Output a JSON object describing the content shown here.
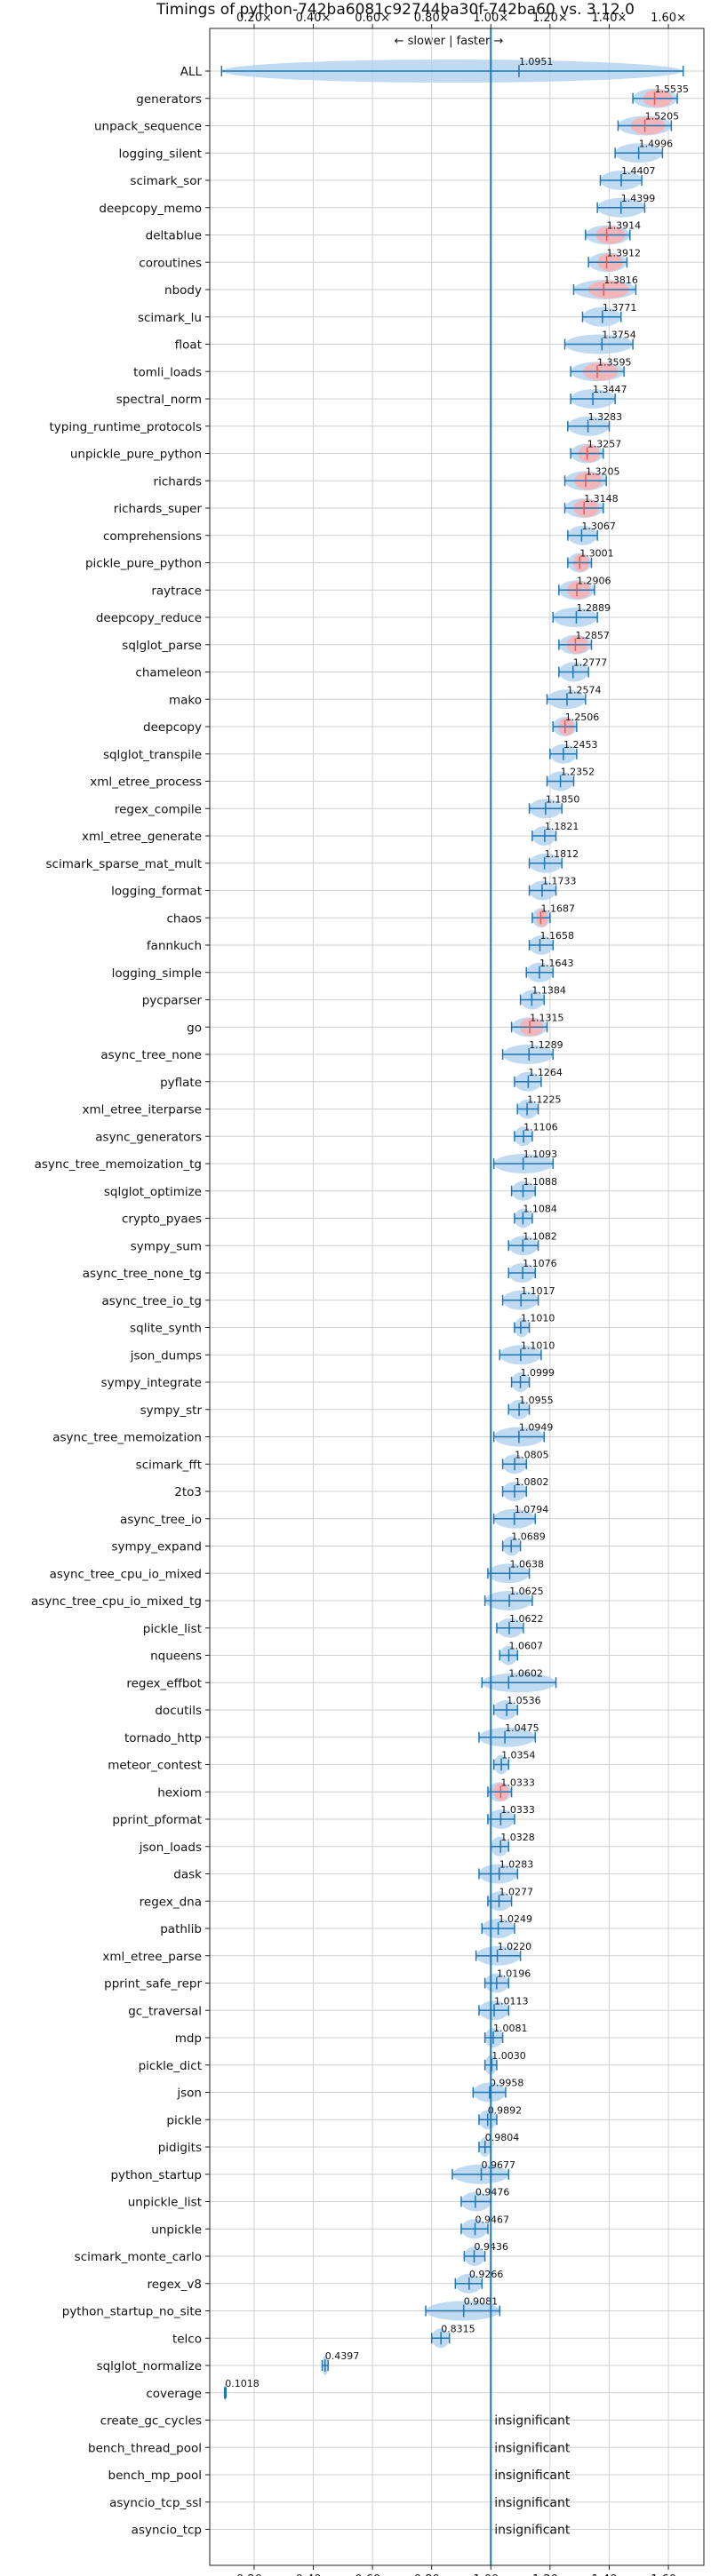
{
  "chart_data": {
    "type": "violin",
    "title": "Timings of python-742ba6081c92744ba30f-742ba60 vs. 3.12.0",
    "subtitle": "← slower | faster →",
    "x_ticks": [
      "0.20×",
      "0.40×",
      "0.60×",
      "0.80×",
      "1.00×",
      "1.20×",
      "1.40×",
      "1.60×"
    ],
    "x_tick_values": [
      0.2,
      0.4,
      0.6,
      0.8,
      1.0,
      1.2,
      1.4,
      1.6
    ],
    "xlim": [
      0.05,
      1.72
    ],
    "grid": true,
    "colors": {
      "faster": "#b5d3ee",
      "slower_fill": "#f4b4b6",
      "line": "#1f77b4",
      "red": "#e05a5a"
    },
    "insignificant_label": "insignificant",
    "benchmarks": [
      {
        "name": "ALL",
        "value": 1.0951,
        "label": "1.0951",
        "lo": 0.09,
        "hi": 1.65,
        "color": "blue"
      },
      {
        "name": "generators",
        "value": 1.5535,
        "label": "1.5535",
        "lo": 1.48,
        "hi": 1.63,
        "color": "red"
      },
      {
        "name": "unpack_sequence",
        "value": 1.5205,
        "label": "1.5205",
        "lo": 1.43,
        "hi": 1.61,
        "color": "red"
      },
      {
        "name": "logging_silent",
        "value": 1.4996,
        "label": "1.4996",
        "lo": 1.42,
        "hi": 1.58,
        "color": "blue"
      },
      {
        "name": "scimark_sor",
        "value": 1.4407,
        "label": "1.4407",
        "lo": 1.37,
        "hi": 1.51,
        "color": "blue"
      },
      {
        "name": "deepcopy_memo",
        "value": 1.4399,
        "label": "1.4399",
        "lo": 1.36,
        "hi": 1.52,
        "color": "blue"
      },
      {
        "name": "deltablue",
        "value": 1.3914,
        "label": "1.3914",
        "lo": 1.32,
        "hi": 1.47,
        "color": "red"
      },
      {
        "name": "coroutines",
        "value": 1.3912,
        "label": "1.3912",
        "lo": 1.33,
        "hi": 1.46,
        "color": "red"
      },
      {
        "name": "nbody",
        "value": 1.3816,
        "label": "1.3816",
        "lo": 1.28,
        "hi": 1.49,
        "color": "red"
      },
      {
        "name": "scimark_lu",
        "value": 1.3771,
        "label": "1.3771",
        "lo": 1.31,
        "hi": 1.44,
        "color": "blue"
      },
      {
        "name": "float",
        "value": 1.3754,
        "label": "1.3754",
        "lo": 1.25,
        "hi": 1.48,
        "color": "blue"
      },
      {
        "name": "tomli_loads",
        "value": 1.3595,
        "label": "1.3595",
        "lo": 1.27,
        "hi": 1.45,
        "color": "red"
      },
      {
        "name": "spectral_norm",
        "value": 1.3447,
        "label": "1.3447",
        "lo": 1.27,
        "hi": 1.42,
        "color": "blue"
      },
      {
        "name": "typing_runtime_protocols",
        "value": 1.3283,
        "label": "1.3283",
        "lo": 1.26,
        "hi": 1.4,
        "color": "blue"
      },
      {
        "name": "unpickle_pure_python",
        "value": 1.3257,
        "label": "1.3257",
        "lo": 1.27,
        "hi": 1.38,
        "color": "red"
      },
      {
        "name": "richards",
        "value": 1.3205,
        "label": "1.3205",
        "lo": 1.25,
        "hi": 1.39,
        "color": "red"
      },
      {
        "name": "richards_super",
        "value": 1.3148,
        "label": "1.3148",
        "lo": 1.25,
        "hi": 1.38,
        "color": "red"
      },
      {
        "name": "comprehensions",
        "value": 1.3067,
        "label": "1.3067",
        "lo": 1.26,
        "hi": 1.36,
        "color": "blue"
      },
      {
        "name": "pickle_pure_python",
        "value": 1.3001,
        "label": "1.3001",
        "lo": 1.26,
        "hi": 1.34,
        "color": "red"
      },
      {
        "name": "raytrace",
        "value": 1.2906,
        "label": "1.2906",
        "lo": 1.23,
        "hi": 1.35,
        "color": "red"
      },
      {
        "name": "deepcopy_reduce",
        "value": 1.2889,
        "label": "1.2889",
        "lo": 1.21,
        "hi": 1.36,
        "color": "blue"
      },
      {
        "name": "sqlglot_parse",
        "value": 1.2857,
        "label": "1.2857",
        "lo": 1.23,
        "hi": 1.34,
        "color": "red"
      },
      {
        "name": "chameleon",
        "value": 1.2777,
        "label": "1.2777",
        "lo": 1.23,
        "hi": 1.33,
        "color": "blue"
      },
      {
        "name": "mako",
        "value": 1.2574,
        "label": "1.2574",
        "lo": 1.19,
        "hi": 1.32,
        "color": "blue"
      },
      {
        "name": "deepcopy",
        "value": 1.2506,
        "label": "1.2506",
        "lo": 1.21,
        "hi": 1.29,
        "color": "red"
      },
      {
        "name": "sqlglot_transpile",
        "value": 1.2453,
        "label": "1.2453",
        "lo": 1.2,
        "hi": 1.29,
        "color": "blue"
      },
      {
        "name": "xml_etree_process",
        "value": 1.2352,
        "label": "1.2352",
        "lo": 1.19,
        "hi": 1.28,
        "color": "blue"
      },
      {
        "name": "regex_compile",
        "value": 1.185,
        "label": "1.1850",
        "lo": 1.13,
        "hi": 1.24,
        "color": "blue"
      },
      {
        "name": "xml_etree_generate",
        "value": 1.1821,
        "label": "1.1821",
        "lo": 1.14,
        "hi": 1.22,
        "color": "blue"
      },
      {
        "name": "scimark_sparse_mat_mult",
        "value": 1.1812,
        "label": "1.1812",
        "lo": 1.13,
        "hi": 1.24,
        "color": "blue"
      },
      {
        "name": "logging_format",
        "value": 1.1733,
        "label": "1.1733",
        "lo": 1.13,
        "hi": 1.22,
        "color": "blue"
      },
      {
        "name": "chaos",
        "value": 1.1687,
        "label": "1.1687",
        "lo": 1.14,
        "hi": 1.2,
        "color": "red"
      },
      {
        "name": "fannkuch",
        "value": 1.1658,
        "label": "1.1658",
        "lo": 1.13,
        "hi": 1.21,
        "color": "blue"
      },
      {
        "name": "logging_simple",
        "value": 1.1643,
        "label": "1.1643",
        "lo": 1.12,
        "hi": 1.21,
        "color": "blue"
      },
      {
        "name": "pycparser",
        "value": 1.1384,
        "label": "1.1384",
        "lo": 1.1,
        "hi": 1.18,
        "color": "blue"
      },
      {
        "name": "go",
        "value": 1.1315,
        "label": "1.1315",
        "lo": 1.07,
        "hi": 1.19,
        "color": "red"
      },
      {
        "name": "async_tree_none",
        "value": 1.1289,
        "label": "1.1289",
        "lo": 1.04,
        "hi": 1.21,
        "color": "blue"
      },
      {
        "name": "pyflate",
        "value": 1.1264,
        "label": "1.1264",
        "lo": 1.08,
        "hi": 1.17,
        "color": "blue"
      },
      {
        "name": "xml_etree_iterparse",
        "value": 1.1225,
        "label": "1.1225",
        "lo": 1.09,
        "hi": 1.16,
        "color": "blue"
      },
      {
        "name": "async_generators",
        "value": 1.1106,
        "label": "1.1106",
        "lo": 1.08,
        "hi": 1.14,
        "color": "blue"
      },
      {
        "name": "async_tree_memoization_tg",
        "value": 1.1093,
        "label": "1.1093",
        "lo": 1.01,
        "hi": 1.21,
        "color": "blue"
      },
      {
        "name": "sqlglot_optimize",
        "value": 1.1088,
        "label": "1.1088",
        "lo": 1.07,
        "hi": 1.15,
        "color": "blue"
      },
      {
        "name": "crypto_pyaes",
        "value": 1.1084,
        "label": "1.1084",
        "lo": 1.08,
        "hi": 1.14,
        "color": "blue"
      },
      {
        "name": "sympy_sum",
        "value": 1.1082,
        "label": "1.1082",
        "lo": 1.06,
        "hi": 1.16,
        "color": "blue"
      },
      {
        "name": "async_tree_none_tg",
        "value": 1.1076,
        "label": "1.1076",
        "lo": 1.06,
        "hi": 1.15,
        "color": "blue"
      },
      {
        "name": "async_tree_io_tg",
        "value": 1.1017,
        "label": "1.1017",
        "lo": 1.04,
        "hi": 1.16,
        "color": "blue"
      },
      {
        "name": "sqlite_synth",
        "value": 1.101,
        "label": "1.1010",
        "lo": 1.08,
        "hi": 1.13,
        "color": "blue"
      },
      {
        "name": "json_dumps",
        "value": 1.101,
        "label": "1.1010",
        "lo": 1.03,
        "hi": 1.17,
        "color": "blue"
      },
      {
        "name": "sympy_integrate",
        "value": 1.0999,
        "label": "1.0999",
        "lo": 1.07,
        "hi": 1.13,
        "color": "blue"
      },
      {
        "name": "sympy_str",
        "value": 1.0955,
        "label": "1.0955",
        "lo": 1.06,
        "hi": 1.13,
        "color": "blue"
      },
      {
        "name": "async_tree_memoization",
        "value": 1.0949,
        "label": "1.0949",
        "lo": 1.01,
        "hi": 1.18,
        "color": "blue"
      },
      {
        "name": "scimark_fft",
        "value": 1.0805,
        "label": "1.0805",
        "lo": 1.04,
        "hi": 1.12,
        "color": "blue"
      },
      {
        "name": "2to3",
        "value": 1.0802,
        "label": "1.0802",
        "lo": 1.04,
        "hi": 1.12,
        "color": "blue"
      },
      {
        "name": "async_tree_io",
        "value": 1.0794,
        "label": "1.0794",
        "lo": 1.01,
        "hi": 1.15,
        "color": "blue"
      },
      {
        "name": "sympy_expand",
        "value": 1.0689,
        "label": "1.0689",
        "lo": 1.04,
        "hi": 1.1,
        "color": "blue"
      },
      {
        "name": "async_tree_cpu_io_mixed",
        "value": 1.0638,
        "label": "1.0638",
        "lo": 0.99,
        "hi": 1.13,
        "color": "blue"
      },
      {
        "name": "async_tree_cpu_io_mixed_tg",
        "value": 1.0625,
        "label": "1.0625",
        "lo": 0.98,
        "hi": 1.14,
        "color": "blue"
      },
      {
        "name": "pickle_list",
        "value": 1.0622,
        "label": "1.0622",
        "lo": 1.02,
        "hi": 1.11,
        "color": "blue"
      },
      {
        "name": "nqueens",
        "value": 1.0607,
        "label": "1.0607",
        "lo": 1.03,
        "hi": 1.09,
        "color": "blue"
      },
      {
        "name": "regex_effbot",
        "value": 1.0602,
        "label": "1.0602",
        "lo": 0.97,
        "hi": 1.22,
        "color": "blue"
      },
      {
        "name": "docutils",
        "value": 1.0536,
        "label": "1.0536",
        "lo": 1.01,
        "hi": 1.09,
        "color": "blue"
      },
      {
        "name": "tornado_http",
        "value": 1.0475,
        "label": "1.0475",
        "lo": 0.96,
        "hi": 1.15,
        "color": "blue"
      },
      {
        "name": "meteor_contest",
        "value": 1.0354,
        "label": "1.0354",
        "lo": 1.01,
        "hi": 1.06,
        "color": "blue"
      },
      {
        "name": "hexiom",
        "value": 1.0333,
        "label": "1.0333",
        "lo": 0.99,
        "hi": 1.07,
        "color": "red"
      },
      {
        "name": "pprint_pformat",
        "value": 1.0333,
        "label": "1.0333",
        "lo": 0.99,
        "hi": 1.08,
        "color": "blue"
      },
      {
        "name": "json_loads",
        "value": 1.0328,
        "label": "1.0328",
        "lo": 1.0,
        "hi": 1.06,
        "color": "blue"
      },
      {
        "name": "dask",
        "value": 1.0283,
        "label": "1.0283",
        "lo": 0.96,
        "hi": 1.09,
        "color": "blue"
      },
      {
        "name": "regex_dna",
        "value": 1.0277,
        "label": "1.0277",
        "lo": 0.99,
        "hi": 1.07,
        "color": "blue"
      },
      {
        "name": "pathlib",
        "value": 1.0249,
        "label": "1.0249",
        "lo": 0.97,
        "hi": 1.08,
        "color": "blue"
      },
      {
        "name": "xml_etree_parse",
        "value": 1.022,
        "label": "1.0220",
        "lo": 0.95,
        "hi": 1.1,
        "color": "blue"
      },
      {
        "name": "pprint_safe_repr",
        "value": 1.0196,
        "label": "1.0196",
        "lo": 0.98,
        "hi": 1.06,
        "color": "blue"
      },
      {
        "name": "gc_traversal",
        "value": 1.0113,
        "label": "1.0113",
        "lo": 0.96,
        "hi": 1.06,
        "color": "blue"
      },
      {
        "name": "mdp",
        "value": 1.0081,
        "label": "1.0081",
        "lo": 0.98,
        "hi": 1.04,
        "color": "blue"
      },
      {
        "name": "pickle_dict",
        "value": 1.003,
        "label": "1.0030",
        "lo": 0.98,
        "hi": 1.02,
        "color": "blue"
      },
      {
        "name": "json",
        "value": 0.9958,
        "label": "0.9958",
        "lo": 0.94,
        "hi": 1.05,
        "color": "blue"
      },
      {
        "name": "pickle",
        "value": 0.9892,
        "label": "0.9892",
        "lo": 0.96,
        "hi": 1.02,
        "color": "blue"
      },
      {
        "name": "pidigits",
        "value": 0.9804,
        "label": "0.9804",
        "lo": 0.96,
        "hi": 1.0,
        "color": "blue"
      },
      {
        "name": "python_startup",
        "value": 0.9677,
        "label": "0.9677",
        "lo": 0.87,
        "hi": 1.06,
        "color": "blue"
      },
      {
        "name": "unpickle_list",
        "value": 0.9476,
        "label": "0.9476",
        "lo": 0.9,
        "hi": 1.0,
        "color": "blue"
      },
      {
        "name": "unpickle",
        "value": 0.9467,
        "label": "0.9467",
        "lo": 0.9,
        "hi": 0.99,
        "color": "blue"
      },
      {
        "name": "scimark_monte_carlo",
        "value": 0.9436,
        "label": "0.9436",
        "lo": 0.91,
        "hi": 0.98,
        "color": "blue"
      },
      {
        "name": "regex_v8",
        "value": 0.9266,
        "label": "0.9266",
        "lo": 0.88,
        "hi": 0.97,
        "color": "blue"
      },
      {
        "name": "python_startup_no_site",
        "value": 0.9081,
        "label": "0.9081",
        "lo": 0.78,
        "hi": 1.03,
        "color": "blue"
      },
      {
        "name": "telco",
        "value": 0.8315,
        "label": "0.8315",
        "lo": 0.8,
        "hi": 0.86,
        "color": "blue"
      },
      {
        "name": "sqlglot_normalize",
        "value": 0.4397,
        "label": "0.4397",
        "lo": 0.43,
        "hi": 0.45,
        "color": "blue"
      },
      {
        "name": "coverage",
        "value": 0.1018,
        "label": "0.1018",
        "lo": 0.1,
        "hi": 0.105,
        "color": "blue"
      },
      {
        "name": "create_gc_cycles",
        "value": null,
        "label": "insignificant",
        "lo": null,
        "hi": null,
        "color": "none"
      },
      {
        "name": "bench_thread_pool",
        "value": null,
        "label": "insignificant",
        "lo": null,
        "hi": null,
        "color": "none"
      },
      {
        "name": "bench_mp_pool",
        "value": null,
        "label": "insignificant",
        "lo": null,
        "hi": null,
        "color": "none"
      },
      {
        "name": "asyncio_tcp_ssl",
        "value": null,
        "label": "insignificant",
        "lo": null,
        "hi": null,
        "color": "none"
      },
      {
        "name": "asyncio_tcp",
        "value": null,
        "label": "insignificant",
        "lo": null,
        "hi": null,
        "color": "none"
      }
    ]
  }
}
